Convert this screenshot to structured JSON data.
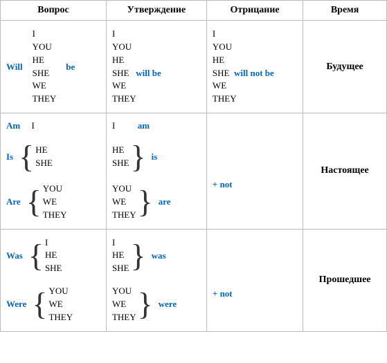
{
  "headers": {
    "question": "Вопрос",
    "statement": "Утверждение",
    "negation": "Отрицание",
    "time": "Время"
  },
  "times": {
    "future": "Будущее",
    "present": "Настоящее",
    "past": "Прошедшее"
  },
  "pronouns": {
    "i": "I",
    "you": "YOU",
    "he": "HE",
    "she": "SHE",
    "we": "WE",
    "they": "THEY"
  },
  "verbs": {
    "will": "Will",
    "will_l": "will",
    "be": "be",
    "will_be": "will  be",
    "will_not_be": "will not be",
    "am": "Am",
    "am_l": "am",
    "is": "Is",
    "is_l": "is",
    "are": "Are",
    "are_l": "are",
    "was": "Was",
    "was_l": "was",
    "were": "Were",
    "were_l": "were"
  },
  "neg": {
    "plus_not": "+  not"
  },
  "style": {
    "verb_color": "#0066cc",
    "border_color": "#bbbbbb",
    "font": "Times New Roman",
    "base_size": 14
  }
}
